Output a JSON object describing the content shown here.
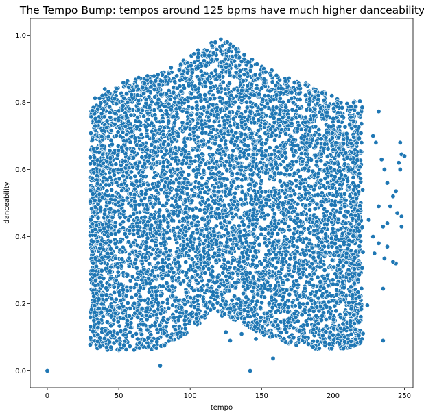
{
  "chart_data": {
    "type": "scatter",
    "title": "The Tempo Bump: tempos around 125 bpms have much higher danceability",
    "xlabel": "tempo",
    "ylabel": "danceability",
    "xlim": [
      -12,
      256
    ],
    "ylim": [
      -0.05,
      1.05
    ],
    "x_ticks": [
      0,
      50,
      100,
      150,
      200,
      250
    ],
    "y_ticks": [
      0.0,
      0.2,
      0.4,
      0.6,
      0.8,
      1.0
    ],
    "x_tick_labels": [
      "0",
      "50",
      "100",
      "150",
      "200",
      "250"
    ],
    "y_tick_labels": [
      "0.0",
      "0.2",
      "0.4",
      "0.6",
      "0.8",
      "1.0"
    ],
    "grid": false,
    "marker_color": "#1f77b4",
    "marker_edge_color": "#ffffff",
    "dense_envelope": {
      "description_of_region": "dense cloud of points",
      "tempo": [
        30,
        40,
        50,
        60,
        70,
        80,
        90,
        100,
        110,
        120,
        125,
        130,
        140,
        150,
        160,
        170,
        180,
        190,
        200,
        210,
        220
      ],
      "upper_danceability": [
        0.78,
        0.83,
        0.86,
        0.87,
        0.88,
        0.89,
        0.91,
        0.94,
        0.97,
        0.99,
        0.985,
        0.97,
        0.94,
        0.91,
        0.89,
        0.87,
        0.86,
        0.84,
        0.82,
        0.8,
        0.78
      ],
      "lower_danceability": [
        0.08,
        0.07,
        0.06,
        0.06,
        0.06,
        0.07,
        0.09,
        0.12,
        0.15,
        0.165,
        0.16,
        0.15,
        0.13,
        0.11,
        0.09,
        0.08,
        0.07,
        0.065,
        0.06,
        0.065,
        0.08
      ]
    },
    "outlier_points": [
      {
        "x": 0,
        "y": 0.0
      },
      {
        "x": 79,
        "y": 0.015
      },
      {
        "x": 142,
        "y": 0.0
      },
      {
        "x": 158,
        "y": 0.037
      },
      {
        "x": 125,
        "y": 0.115
      },
      {
        "x": 136,
        "y": 0.11
      },
      {
        "x": 146,
        "y": 0.095
      },
      {
        "x": 128,
        "y": 0.09
      },
      {
        "x": 232,
        "y": 0.773
      },
      {
        "x": 228,
        "y": 0.7
      },
      {
        "x": 230,
        "y": 0.68
      },
      {
        "x": 234,
        "y": 0.63
      },
      {
        "x": 236,
        "y": 0.6
      },
      {
        "x": 247,
        "y": 0.68
      },
      {
        "x": 248,
        "y": 0.645
      },
      {
        "x": 250,
        "y": 0.64
      },
      {
        "x": 246,
        "y": 0.62
      },
      {
        "x": 247,
        "y": 0.6
      },
      {
        "x": 238,
        "y": 0.56
      },
      {
        "x": 244,
        "y": 0.535
      },
      {
        "x": 242,
        "y": 0.52
      },
      {
        "x": 232,
        "y": 0.49
      },
      {
        "x": 240,
        "y": 0.49
      },
      {
        "x": 245,
        "y": 0.47
      },
      {
        "x": 248,
        "y": 0.46
      },
      {
        "x": 225,
        "y": 0.45
      },
      {
        "x": 238,
        "y": 0.44
      },
      {
        "x": 248,
        "y": 0.43
      },
      {
        "x": 235,
        "y": 0.43
      },
      {
        "x": 228,
        "y": 0.4
      },
      {
        "x": 232,
        "y": 0.38
      },
      {
        "x": 238,
        "y": 0.37
      },
      {
        "x": 229,
        "y": 0.35
      },
      {
        "x": 236,
        "y": 0.335
      },
      {
        "x": 244,
        "y": 0.32
      },
      {
        "x": 242,
        "y": 0.325
      },
      {
        "x": 235,
        "y": 0.245
      },
      {
        "x": 235,
        "y": 0.09
      },
      {
        "x": 224,
        "y": 0.195
      }
    ]
  }
}
